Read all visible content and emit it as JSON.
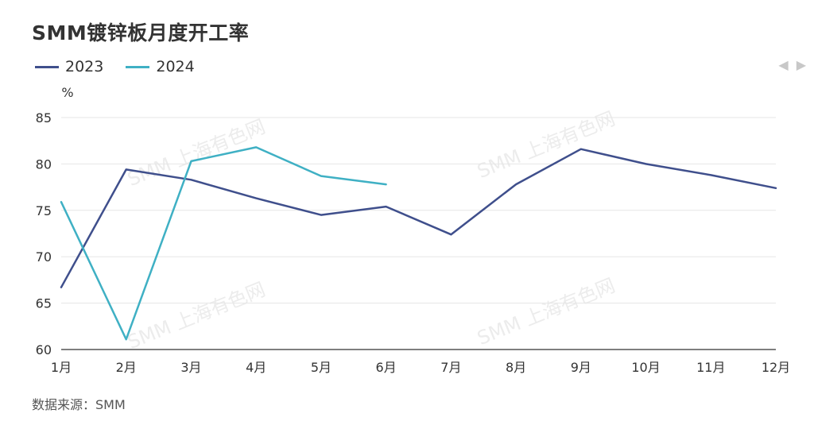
{
  "title": "SMM镀锌板月度开工率",
  "source": "数据来源：SMM",
  "watermark": "SMM 上海有色网",
  "pager": {
    "prev_icon": "◀",
    "next_icon": "▶"
  },
  "chart_data": {
    "type": "line",
    "ylabel": "%",
    "ylim": [
      60,
      85
    ],
    "yticks": [
      60,
      65,
      70,
      75,
      80,
      85
    ],
    "categories": [
      "1月",
      "2月",
      "3月",
      "4月",
      "5月",
      "6月",
      "7月",
      "8月",
      "9月",
      "10月",
      "11月",
      "12月"
    ],
    "grid": true,
    "legend_position": "top-left",
    "series": [
      {
        "name": "2023",
        "color": "#3f4f8c",
        "values": [
          66.7,
          79.4,
          78.3,
          76.3,
          74.5,
          75.4,
          72.4,
          77.8,
          81.6,
          80.0,
          78.8,
          77.4
        ]
      },
      {
        "name": "2024",
        "color": "#3fb0c4",
        "values": [
          75.9,
          61.1,
          80.3,
          81.8,
          78.7,
          77.8,
          null,
          null,
          null,
          null,
          null,
          null
        ]
      }
    ]
  }
}
